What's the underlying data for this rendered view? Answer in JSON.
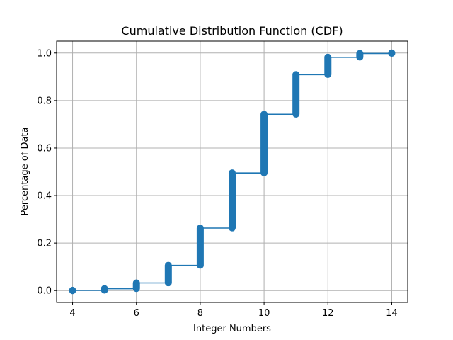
{
  "chart_data": {
    "type": "line",
    "title": "Cumulative Distribution Function (CDF)",
    "xlabel": "Integer Numbers",
    "ylabel": "Percentage of Data",
    "xlim": [
      3.5,
      14.5
    ],
    "ylim": [
      -0.05,
      1.05
    ],
    "xticks": [
      4,
      6,
      8,
      10,
      12,
      14
    ],
    "yticks": [
      0.0,
      0.2,
      0.4,
      0.6,
      0.8,
      1.0
    ],
    "xtick_labels": [
      "4",
      "6",
      "8",
      "10",
      "12",
      "14"
    ],
    "ytick_labels": [
      "0.0",
      "0.2",
      "0.4",
      "0.6",
      "0.8",
      "1.0"
    ],
    "grid": true,
    "color": "#1f77b4",
    "steps": [
      {
        "x": 4,
        "y_start": 0.0,
        "y_end": 0.001
      },
      {
        "x": 5,
        "y_start": 0.002,
        "y_end": 0.008
      },
      {
        "x": 6,
        "y_start": 0.009,
        "y_end": 0.032
      },
      {
        "x": 7,
        "y_start": 0.033,
        "y_end": 0.106
      },
      {
        "x": 8,
        "y_start": 0.107,
        "y_end": 0.263
      },
      {
        "x": 9,
        "y_start": 0.264,
        "y_end": 0.495
      },
      {
        "x": 10,
        "y_start": 0.496,
        "y_end": 0.742
      },
      {
        "x": 11,
        "y_start": 0.743,
        "y_end": 0.909
      },
      {
        "x": 12,
        "y_start": 0.91,
        "y_end": 0.982
      },
      {
        "x": 13,
        "y_start": 0.983,
        "y_end": 0.998
      },
      {
        "x": 14,
        "y_start": 0.999,
        "y_end": 1.0
      }
    ]
  }
}
